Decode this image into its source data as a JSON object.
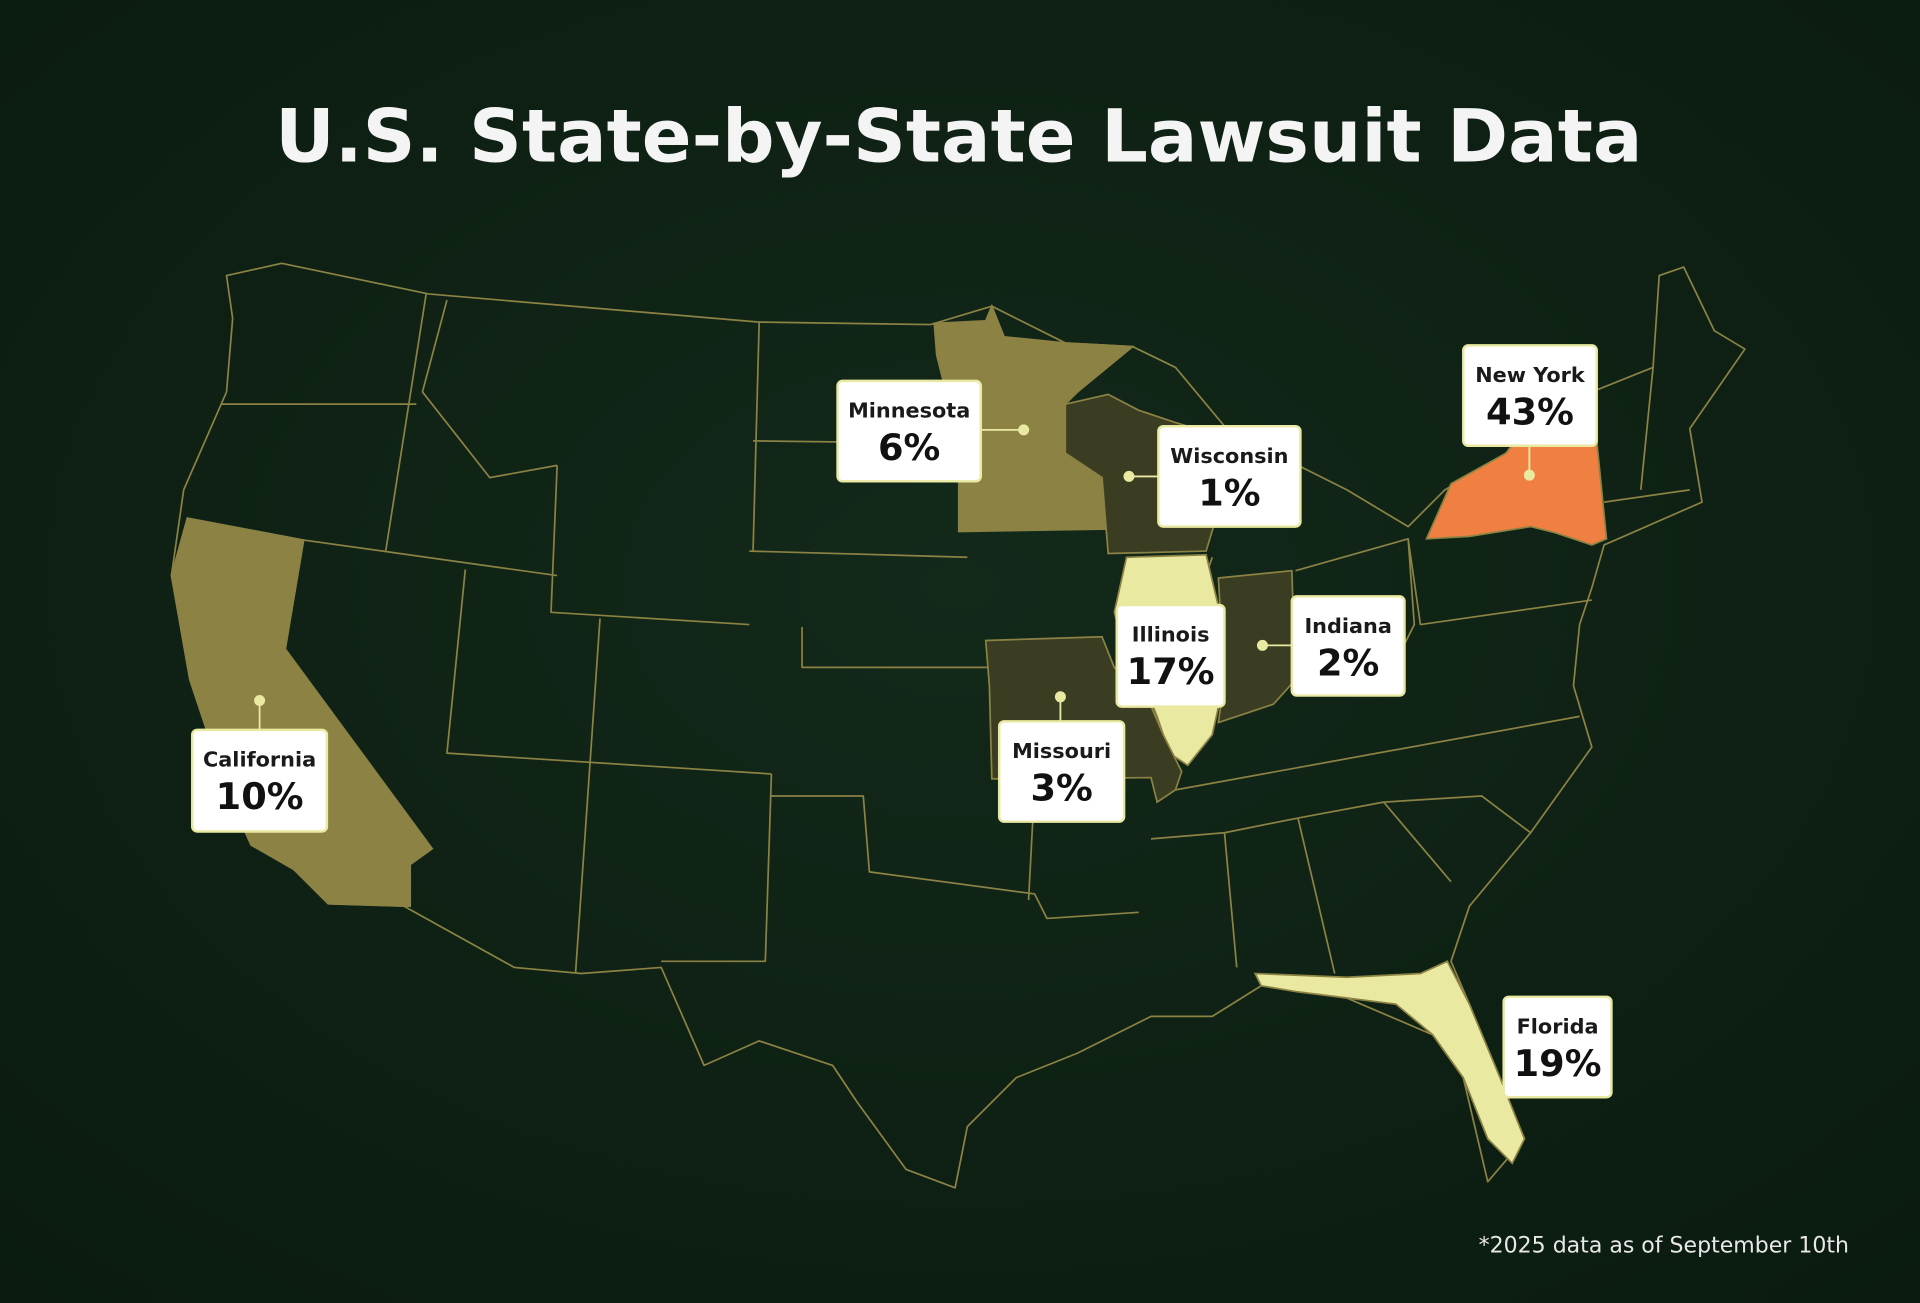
{
  "title": "U.S. State-by-State Lawsuit Data",
  "states": [
    {
      "name": "Minnesota",
      "value": 6,
      "label": "6%",
      "color": "#8b8244"
    },
    {
      "name": "Wisconsin",
      "value": 1,
      "label": "1%",
      "color": "#3b3d23"
    },
    {
      "name": "New York",
      "value": 43,
      "label": "43%",
      "color": "#f08042"
    },
    {
      "name": "Illinois",
      "value": 17,
      "label": "17%",
      "color": "#e9e9a2"
    },
    {
      "name": "Indiana",
      "value": 2,
      "label": "2%",
      "color": "#3b3d23"
    },
    {
      "name": "Missouri",
      "value": 3,
      "label": "3%",
      "color": "#3b3d23"
    },
    {
      "name": "California",
      "value": 10,
      "label": "10%",
      "color": "#8b8244"
    },
    {
      "name": "Florida",
      "value": 19,
      "label": "19%",
      "color": "#e9e9a2"
    }
  ],
  "footnote": "*2025 data as of September 10th"
}
